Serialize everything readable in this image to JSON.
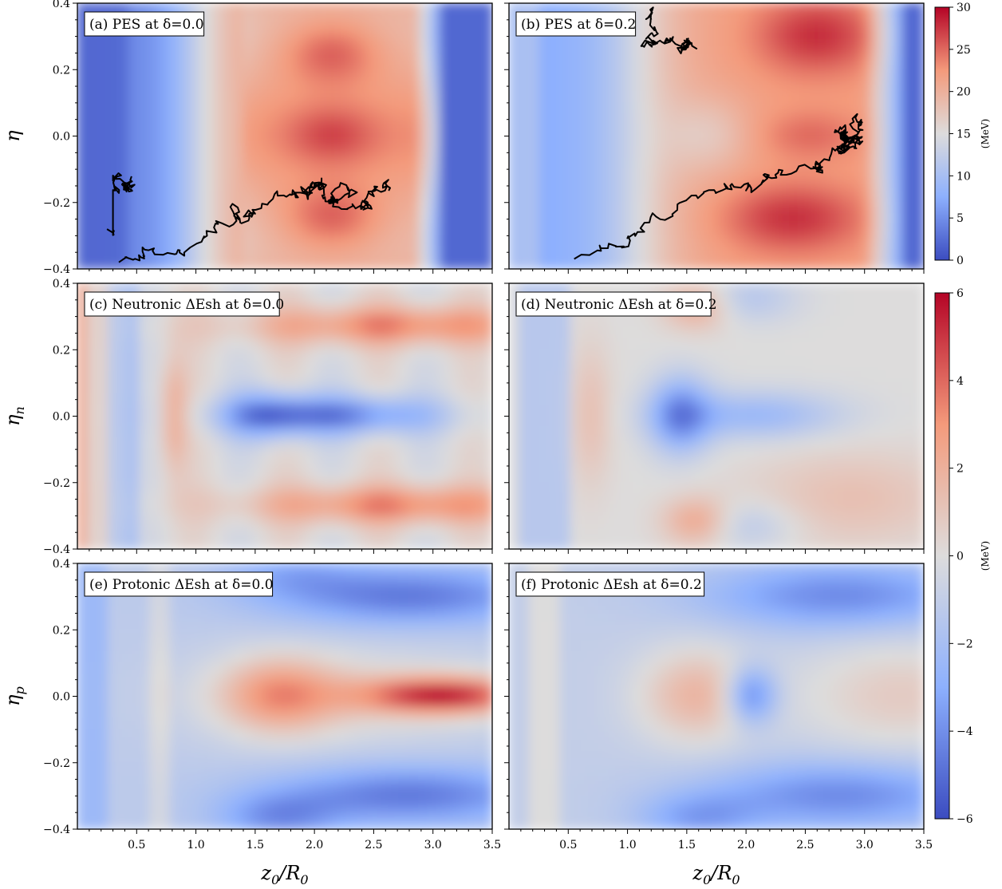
{
  "chart_data": [
    {
      "type": "heatmap",
      "label": "(a) PES at δ=0.0",
      "xlabel": "",
      "ylabel": "η",
      "xlim": [
        0.0,
        3.5
      ],
      "ylim": [
        -0.4,
        0.4
      ],
      "colorbar": {
        "range": [
          0,
          30
        ],
        "ticks": [
          "0",
          "5",
          "10",
          "15",
          "20",
          "25",
          "30"
        ],
        "unit": "(MeV)"
      },
      "trajectory_overlay": true
    },
    {
      "type": "heatmap",
      "label": "(b) PES at δ=0.2",
      "xlabel": "",
      "ylabel": "",
      "xlim": [
        0.0,
        3.5
      ],
      "ylim": [
        -0.4,
        0.4
      ],
      "colorbar": {
        "range": [
          0,
          30
        ],
        "ticks": [
          "0",
          "5",
          "10",
          "15",
          "20",
          "25",
          "30"
        ],
        "unit": "(MeV)"
      },
      "trajectory_overlay": true
    },
    {
      "type": "heatmap",
      "label": "(c) Neutronic ΔEsh at δ=0.0",
      "xlabel": "",
      "ylabel": "η_n",
      "xlim": [
        0.0,
        3.5
      ],
      "ylim": [
        -0.4,
        0.4
      ],
      "colorbar": {
        "range": [
          -6,
          6
        ],
        "ticks": [
          "−6",
          "−4",
          "−2",
          "0",
          "2",
          "4",
          "6"
        ],
        "unit": "(MeV)"
      }
    },
    {
      "type": "heatmap",
      "label": "(d) Neutronic ΔEsh at δ=0.2",
      "xlabel": "",
      "ylabel": "",
      "xlim": [
        0.0,
        3.5
      ],
      "ylim": [
        -0.4,
        0.4
      ],
      "colorbar": {
        "range": [
          -6,
          6
        ],
        "ticks": [
          "−6",
          "−4",
          "−2",
          "0",
          "2",
          "4",
          "6"
        ],
        "unit": "(MeV)"
      }
    },
    {
      "type": "heatmap",
      "label": "(e) Protonic ΔEsh at δ=0.0",
      "xlabel": "z0/R0",
      "ylabel": "η_p",
      "xlim": [
        0.0,
        3.5
      ],
      "ylim": [
        -0.4,
        0.4
      ],
      "colorbar": {
        "range": [
          -6,
          6
        ],
        "ticks": [
          "−6",
          "−4",
          "−2",
          "0",
          "2",
          "4",
          "6"
        ],
        "unit": "(MeV)"
      }
    },
    {
      "type": "heatmap",
      "label": "(f) Protonic ΔEsh at δ=0.2",
      "xlabel": "z0/R0",
      "ylabel": "",
      "xlim": [
        0.0,
        3.5
      ],
      "ylim": [
        -0.4,
        0.4
      ],
      "colorbar": {
        "range": [
          -6,
          6
        ],
        "ticks": [
          "−6",
          "−4",
          "−2",
          "0",
          "2",
          "4",
          "6"
        ],
        "unit": "(MeV)"
      }
    }
  ],
  "axes": {
    "x_ticks": [
      "0.5",
      "1.0",
      "1.5",
      "2.0",
      "2.5",
      "3.0",
      "3.5"
    ],
    "x_tick_values": [
      0.5,
      1.0,
      1.5,
      2.0,
      2.5,
      3.0,
      3.5
    ],
    "y_ticks": [
      "0.4",
      "0.2",
      "0.0",
      "−0.2",
      "−0.4"
    ],
    "y_tick_values": [
      0.4,
      0.2,
      0.0,
      -0.2,
      -0.4
    ],
    "ylabel_top": "η",
    "ylabel_mid_base": "η",
    "ylabel_mid_sub": "n",
    "ylabel_bot_base": "η",
    "ylabel_bot_sub": "p",
    "xlabel_base": "z",
    "xlabel_sub1": "0",
    "xlabel_over": "/R",
    "xlabel_sub2": "0"
  },
  "colorbars": {
    "top": {
      "ticks": [
        "30",
        "25",
        "20",
        "15",
        "10",
        "5",
        "0"
      ],
      "unit": "(MeV)"
    },
    "bottom": {
      "ticks": [
        "6",
        "4",
        "2",
        "0",
        "−2",
        "−4",
        "−6"
      ],
      "unit": "(MeV)"
    }
  },
  "colors": {
    "cold": "#3b4cc0",
    "neutral": "#dddddd",
    "hot": "#b40426"
  }
}
